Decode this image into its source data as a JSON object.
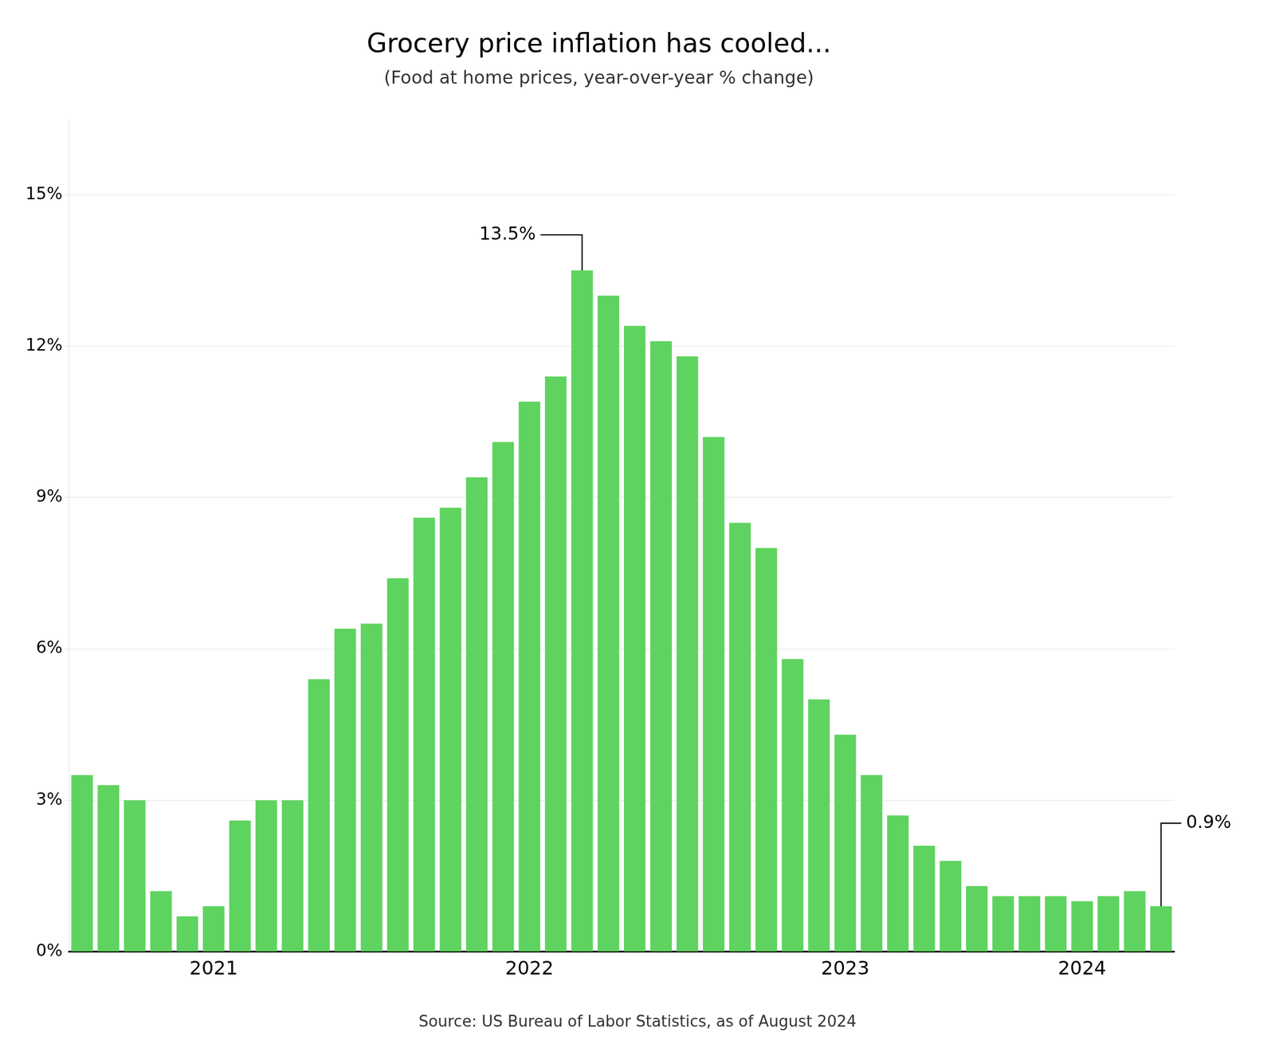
{
  "chart_data": {
    "type": "bar",
    "title": "Grocery price inflation has cooled...",
    "subtitle": "(Food at home prices, year-over-year % change)",
    "source": "Source: US Bureau of Labor Statistics, as of August 2024",
    "categories": [
      null,
      null,
      null,
      null,
      null,
      "2021",
      null,
      null,
      null,
      null,
      null,
      null,
      null,
      null,
      null,
      null,
      null,
      "2022",
      null,
      null,
      null,
      null,
      null,
      null,
      null,
      null,
      null,
      null,
      null,
      "2023",
      null,
      null,
      null,
      null,
      null,
      null,
      null,
      null,
      "2024",
      null,
      null,
      null
    ],
    "values": [
      3.5,
      3.3,
      3.0,
      1.2,
      0.7,
      0.9,
      2.6,
      3.0,
      3.0,
      5.4,
      6.4,
      6.5,
      7.4,
      8.6,
      8.8,
      9.4,
      10.1,
      10.9,
      11.4,
      13.5,
      13.0,
      12.4,
      12.1,
      11.8,
      10.2,
      8.5,
      8.0,
      5.8,
      5.0,
      4.3,
      3.5,
      2.7,
      2.1,
      1.8,
      1.3,
      1.1,
      1.1,
      1.1,
      1.0,
      1.1,
      1.2,
      0.9
    ],
    "color": "#5fd35f",
    "ylim": [
      0,
      16.5
    ],
    "yticks": [
      {
        "value": 0,
        "label": "0%"
      },
      {
        "value": 3,
        "label": "3%"
      },
      {
        "value": 6,
        "label": "6%"
      },
      {
        "value": 9,
        "label": "9%"
      },
      {
        "value": 12,
        "label": "12%"
      },
      {
        "value": 15,
        "label": "15%"
      }
    ],
    "grid": true,
    "annotations": [
      {
        "text": "13.5%",
        "x": 19,
        "y": 13.5
      },
      {
        "text": "0.9%",
        "x": 41,
        "y": 0.9
      }
    ]
  }
}
